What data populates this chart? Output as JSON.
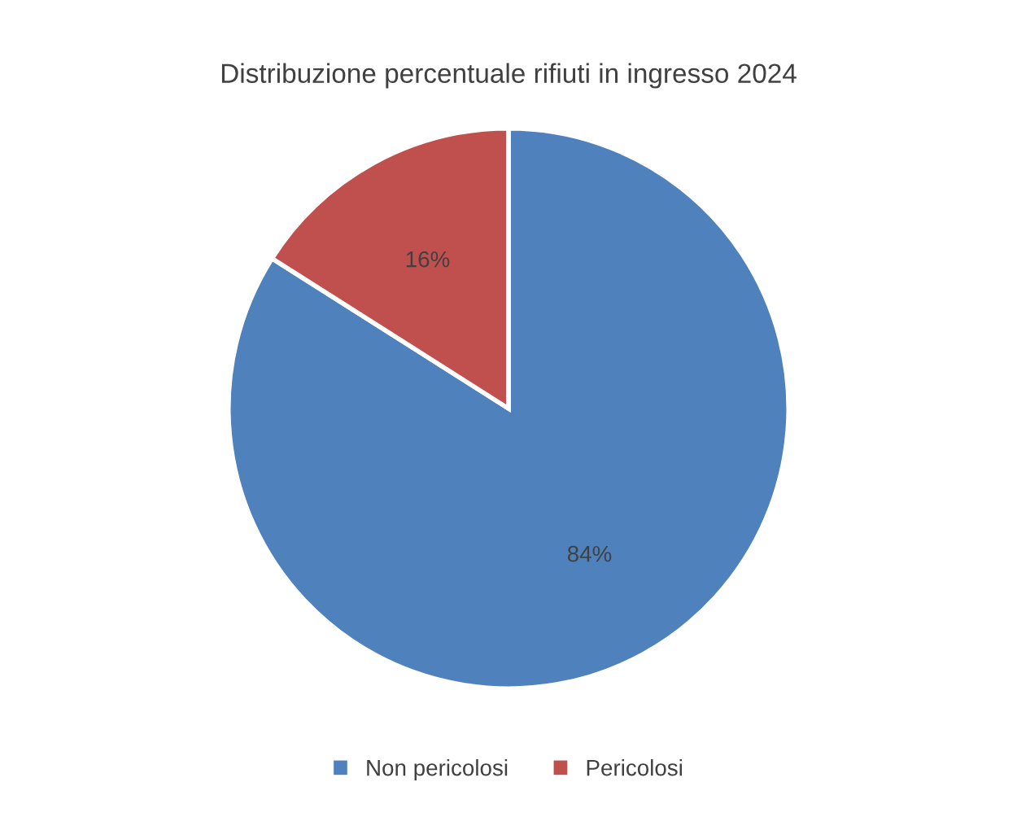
{
  "chart_data": {
    "type": "pie",
    "title": "Distribuzione percentuale rifiuti in ingresso 2024",
    "categories": [
      "Non pericolosi",
      "Pericolosi"
    ],
    "values": [
      84,
      16
    ],
    "colors": [
      "#4f81bd",
      "#c0504d"
    ],
    "value_labels": [
      "84%",
      "16%"
    ],
    "legend": "bottom"
  }
}
